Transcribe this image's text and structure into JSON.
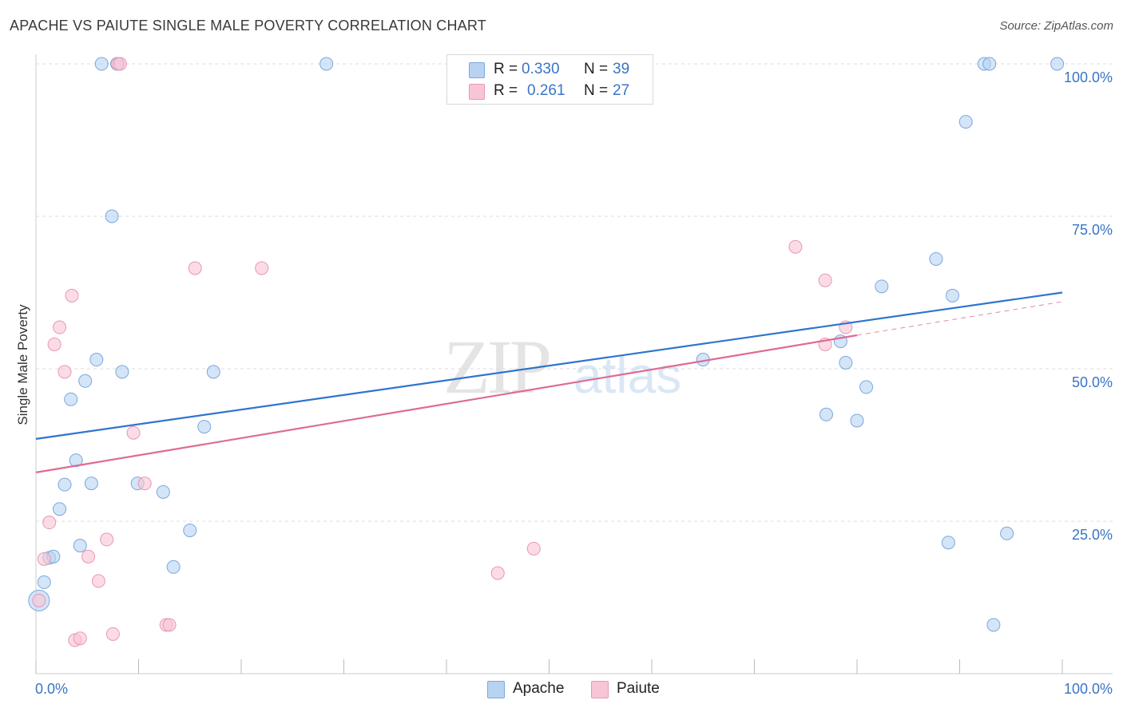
{
  "title": "APACHE VS PAIUTE SINGLE MALE POVERTY CORRELATION CHART",
  "source": "Source: ZipAtlas.com",
  "watermark": {
    "zip": "ZIP",
    "atlas": "atlas"
  },
  "legend": {
    "rows": [
      {
        "r_label": "R =",
        "r_value": "0.330",
        "n_label": "N =",
        "n_value": "39"
      },
      {
        "r_label": "R =",
        "r_value": "0.261",
        "n_label": "N =",
        "n_value": "27"
      }
    ]
  },
  "bottom_legend": {
    "apache": "Apache",
    "paiute": "Paiute"
  },
  "colors": {
    "apache_fill": "#b8d3f2",
    "apache_stroke": "#7aa7dd",
    "apache_line": "#2f74cf",
    "paiute_fill": "#f8c5d5",
    "paiute_stroke": "#e897b3",
    "paiute_line": "#e06a93",
    "tick_text": "#3a74c4",
    "grid": "#dddddd"
  },
  "chart_data": {
    "type": "scatter",
    "title": "APACHE VS PAIUTE SINGLE MALE POVERTY CORRELATION CHART",
    "xlabel": "",
    "ylabel": "Single Male Poverty",
    "xlim": [
      0,
      100
    ],
    "ylim": [
      0,
      100
    ],
    "x_tick_labels": [
      "0.0%",
      "100.0%"
    ],
    "y_tick_labels": [
      "100.0%",
      "75.0%",
      "50.0%",
      "25.0%"
    ],
    "y_tick_values": [
      100,
      75,
      50,
      25
    ],
    "series": [
      {
        "name": "Apache",
        "r": 0.33,
        "n": 39,
        "trend": {
          "x0": 0,
          "y0": 38.5,
          "x1": 100,
          "y1": 62.5
        },
        "points": [
          [
            0.3,
            12.0,
            3
          ],
          [
            0.8,
            15.0,
            1
          ],
          [
            1.3,
            19.0,
            1
          ],
          [
            1.7,
            19.2,
            1
          ],
          [
            2.3,
            27.0,
            1
          ],
          [
            2.8,
            31.0,
            1
          ],
          [
            3.4,
            45.0,
            1
          ],
          [
            3.9,
            35.0,
            1
          ],
          [
            4.3,
            21.0,
            1
          ],
          [
            4.8,
            48.0,
            1
          ],
          [
            5.4,
            31.2,
            1
          ],
          [
            5.9,
            51.5,
            1
          ],
          [
            6.4,
            100.0,
            1
          ],
          [
            7.4,
            75.0,
            1
          ],
          [
            7.9,
            100.0,
            1
          ],
          [
            8.4,
            49.5,
            1
          ],
          [
            9.9,
            31.2,
            1
          ],
          [
            12.4,
            29.8,
            1
          ],
          [
            13.4,
            17.5,
            1
          ],
          [
            15.0,
            23.5,
            1
          ],
          [
            16.4,
            40.5,
            1
          ],
          [
            17.3,
            49.5,
            1
          ],
          [
            28.3,
            100.0,
            1
          ],
          [
            65.0,
            51.5,
            1
          ],
          [
            77.0,
            42.5,
            1
          ],
          [
            78.4,
            54.5,
            1
          ],
          [
            78.9,
            51.0,
            1
          ],
          [
            80.0,
            41.5,
            1
          ],
          [
            80.9,
            47.0,
            1
          ],
          [
            82.4,
            63.5,
            1
          ],
          [
            87.7,
            68.0,
            1
          ],
          [
            88.9,
            21.5,
            1
          ],
          [
            89.3,
            62.0,
            1
          ],
          [
            90.6,
            90.5,
            1
          ],
          [
            92.4,
            100.0,
            1
          ],
          [
            92.9,
            100.0,
            1
          ],
          [
            93.3,
            8.0,
            1
          ],
          [
            94.6,
            23.0,
            1
          ],
          [
            99.5,
            100.0,
            1
          ]
        ]
      },
      {
        "name": "Paiute",
        "r": 0.261,
        "n": 27,
        "trend": {
          "x0": 0,
          "y0": 33.0,
          "x1": 80,
          "y1": 55.5,
          "dash_x1": 100,
          "dash_y1": 61.0
        },
        "points": [
          [
            0.3,
            12.0,
            1
          ],
          [
            0.8,
            18.8,
            1
          ],
          [
            1.3,
            24.8,
            1
          ],
          [
            1.8,
            54.0,
            1
          ],
          [
            2.3,
            56.8,
            1
          ],
          [
            2.8,
            49.5,
            1
          ],
          [
            3.5,
            62.0,
            1
          ],
          [
            3.8,
            5.5,
            1
          ],
          [
            4.3,
            5.8,
            1
          ],
          [
            5.1,
            19.2,
            1
          ],
          [
            6.1,
            15.2,
            1
          ],
          [
            6.9,
            22.0,
            1
          ],
          [
            7.5,
            6.5,
            1
          ],
          [
            8.0,
            100.0,
            1
          ],
          [
            8.2,
            100.0,
            1
          ],
          [
            9.5,
            39.5,
            1
          ],
          [
            10.6,
            31.2,
            1
          ],
          [
            12.7,
            8.0,
            1
          ],
          [
            13.0,
            8.0,
            1
          ],
          [
            15.5,
            66.5,
            1
          ],
          [
            22.0,
            66.5,
            1
          ],
          [
            45.0,
            16.5,
            1
          ],
          [
            48.5,
            20.5,
            1
          ],
          [
            74.0,
            70.0,
            1
          ],
          [
            76.9,
            54.0,
            1
          ],
          [
            76.9,
            64.5,
            1
          ],
          [
            78.9,
            56.8,
            1
          ]
        ]
      }
    ]
  }
}
